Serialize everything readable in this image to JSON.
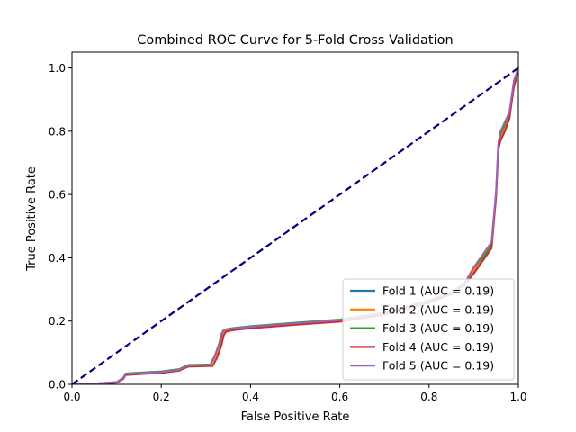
{
  "chart_data": {
    "type": "line",
    "title": "Combined ROC Curve for 5-Fold Cross Validation",
    "xlabel": "False Positive Rate",
    "ylabel": "True Positive Rate",
    "xlim": [
      0.0,
      1.0
    ],
    "ylim": [
      0.0,
      1.05
    ],
    "xticks": [
      "0.0",
      "0.2",
      "0.4",
      "0.6",
      "0.8",
      "1.0"
    ],
    "yticks": [
      "0.0",
      "0.2",
      "0.4",
      "0.6",
      "0.8",
      "1.0"
    ],
    "grid": false,
    "legend_position": "lower-right",
    "diagonal": {
      "x": [
        0.0,
        1.0
      ],
      "y": [
        0.0,
        1.0
      ],
      "color": "#000080",
      "style": "dashed"
    },
    "series": [
      {
        "name": "Fold 1 (AUC = 0.19)",
        "color": "#1f77b4",
        "x": [
          0.0,
          0.05,
          0.1,
          0.115,
          0.12,
          0.15,
          0.2,
          0.24,
          0.26,
          0.31,
          0.32,
          0.33,
          0.335,
          0.34,
          0.36,
          0.4,
          0.5,
          0.6,
          0.7,
          0.8,
          0.85,
          0.88,
          0.9,
          0.92,
          0.94,
          0.95,
          0.955,
          0.96,
          0.97,
          0.98,
          0.99,
          1.0
        ],
        "y": [
          0.0,
          0.002,
          0.007,
          0.02,
          0.033,
          0.036,
          0.04,
          0.047,
          0.06,
          0.062,
          0.09,
          0.13,
          0.16,
          0.172,
          0.177,
          0.183,
          0.194,
          0.204,
          0.226,
          0.264,
          0.29,
          0.32,
          0.36,
          0.4,
          0.44,
          0.6,
          0.75,
          0.78,
          0.81,
          0.85,
          0.95,
          1.0
        ]
      },
      {
        "name": "Fold 2 (AUC = 0.19)",
        "color": "#ff7f0e",
        "x": [
          0.0,
          0.05,
          0.1,
          0.115,
          0.12,
          0.15,
          0.2,
          0.24,
          0.26,
          0.31,
          0.322,
          0.332,
          0.337,
          0.342,
          0.36,
          0.4,
          0.5,
          0.6,
          0.7,
          0.8,
          0.85,
          0.88,
          0.9,
          0.92,
          0.94,
          0.95,
          0.955,
          0.96,
          0.97,
          0.98,
          0.99,
          1.0
        ],
        "y": [
          0.0,
          0.002,
          0.006,
          0.019,
          0.032,
          0.035,
          0.039,
          0.046,
          0.059,
          0.061,
          0.088,
          0.128,
          0.158,
          0.17,
          0.175,
          0.181,
          0.192,
          0.202,
          0.225,
          0.262,
          0.288,
          0.318,
          0.36,
          0.4,
          0.45,
          0.6,
          0.74,
          0.78,
          0.81,
          0.85,
          0.95,
          1.0
        ]
      },
      {
        "name": "Fold 3 (AUC = 0.19)",
        "color": "#2ca02c",
        "x": [
          0.0,
          0.05,
          0.1,
          0.115,
          0.12,
          0.15,
          0.2,
          0.24,
          0.26,
          0.31,
          0.32,
          0.331,
          0.336,
          0.341,
          0.36,
          0.4,
          0.5,
          0.6,
          0.7,
          0.8,
          0.85,
          0.88,
          0.9,
          0.92,
          0.94,
          0.95,
          0.955,
          0.96,
          0.97,
          0.98,
          0.99,
          1.0
        ],
        "y": [
          0.0,
          0.002,
          0.007,
          0.021,
          0.034,
          0.037,
          0.041,
          0.048,
          0.061,
          0.063,
          0.091,
          0.131,
          0.161,
          0.173,
          0.178,
          0.184,
          0.195,
          0.205,
          0.227,
          0.265,
          0.291,
          0.321,
          0.37,
          0.4,
          0.44,
          0.6,
          0.75,
          0.79,
          0.82,
          0.86,
          0.95,
          1.0
        ]
      },
      {
        "name": "Fold 4 (AUC = 0.19)",
        "color": "#d62728",
        "x": [
          0.0,
          0.05,
          0.1,
          0.115,
          0.12,
          0.15,
          0.2,
          0.24,
          0.26,
          0.315,
          0.325,
          0.335,
          0.34,
          0.345,
          0.36,
          0.4,
          0.5,
          0.6,
          0.7,
          0.8,
          0.85,
          0.88,
          0.9,
          0.92,
          0.94,
          0.95,
          0.955,
          0.96,
          0.97,
          0.98,
          0.99,
          1.0
        ],
        "y": [
          0.0,
          0.001,
          0.005,
          0.017,
          0.029,
          0.032,
          0.036,
          0.043,
          0.056,
          0.058,
          0.084,
          0.124,
          0.155,
          0.166,
          0.171,
          0.177,
          0.188,
          0.198,
          0.22,
          0.258,
          0.285,
          0.315,
          0.35,
          0.39,
          0.43,
          0.59,
          0.74,
          0.77,
          0.8,
          0.84,
          0.94,
          0.99
        ]
      },
      {
        "name": "Fold 5 (AUC = 0.19)",
        "color": "#9467bd",
        "x": [
          0.0,
          0.05,
          0.1,
          0.115,
          0.12,
          0.15,
          0.2,
          0.24,
          0.26,
          0.31,
          0.32,
          0.33,
          0.335,
          0.34,
          0.36,
          0.4,
          0.5,
          0.6,
          0.7,
          0.8,
          0.85,
          0.88,
          0.9,
          0.92,
          0.94,
          0.95,
          0.955,
          0.96,
          0.97,
          0.98,
          0.99,
          1.0
        ],
        "y": [
          0.0,
          0.002,
          0.007,
          0.02,
          0.032,
          0.035,
          0.039,
          0.046,
          0.059,
          0.061,
          0.089,
          0.129,
          0.159,
          0.171,
          0.176,
          0.182,
          0.193,
          0.203,
          0.226,
          0.263,
          0.289,
          0.319,
          0.37,
          0.41,
          0.45,
          0.61,
          0.76,
          0.8,
          0.83,
          0.86,
          0.96,
          1.0
        ]
      }
    ]
  }
}
